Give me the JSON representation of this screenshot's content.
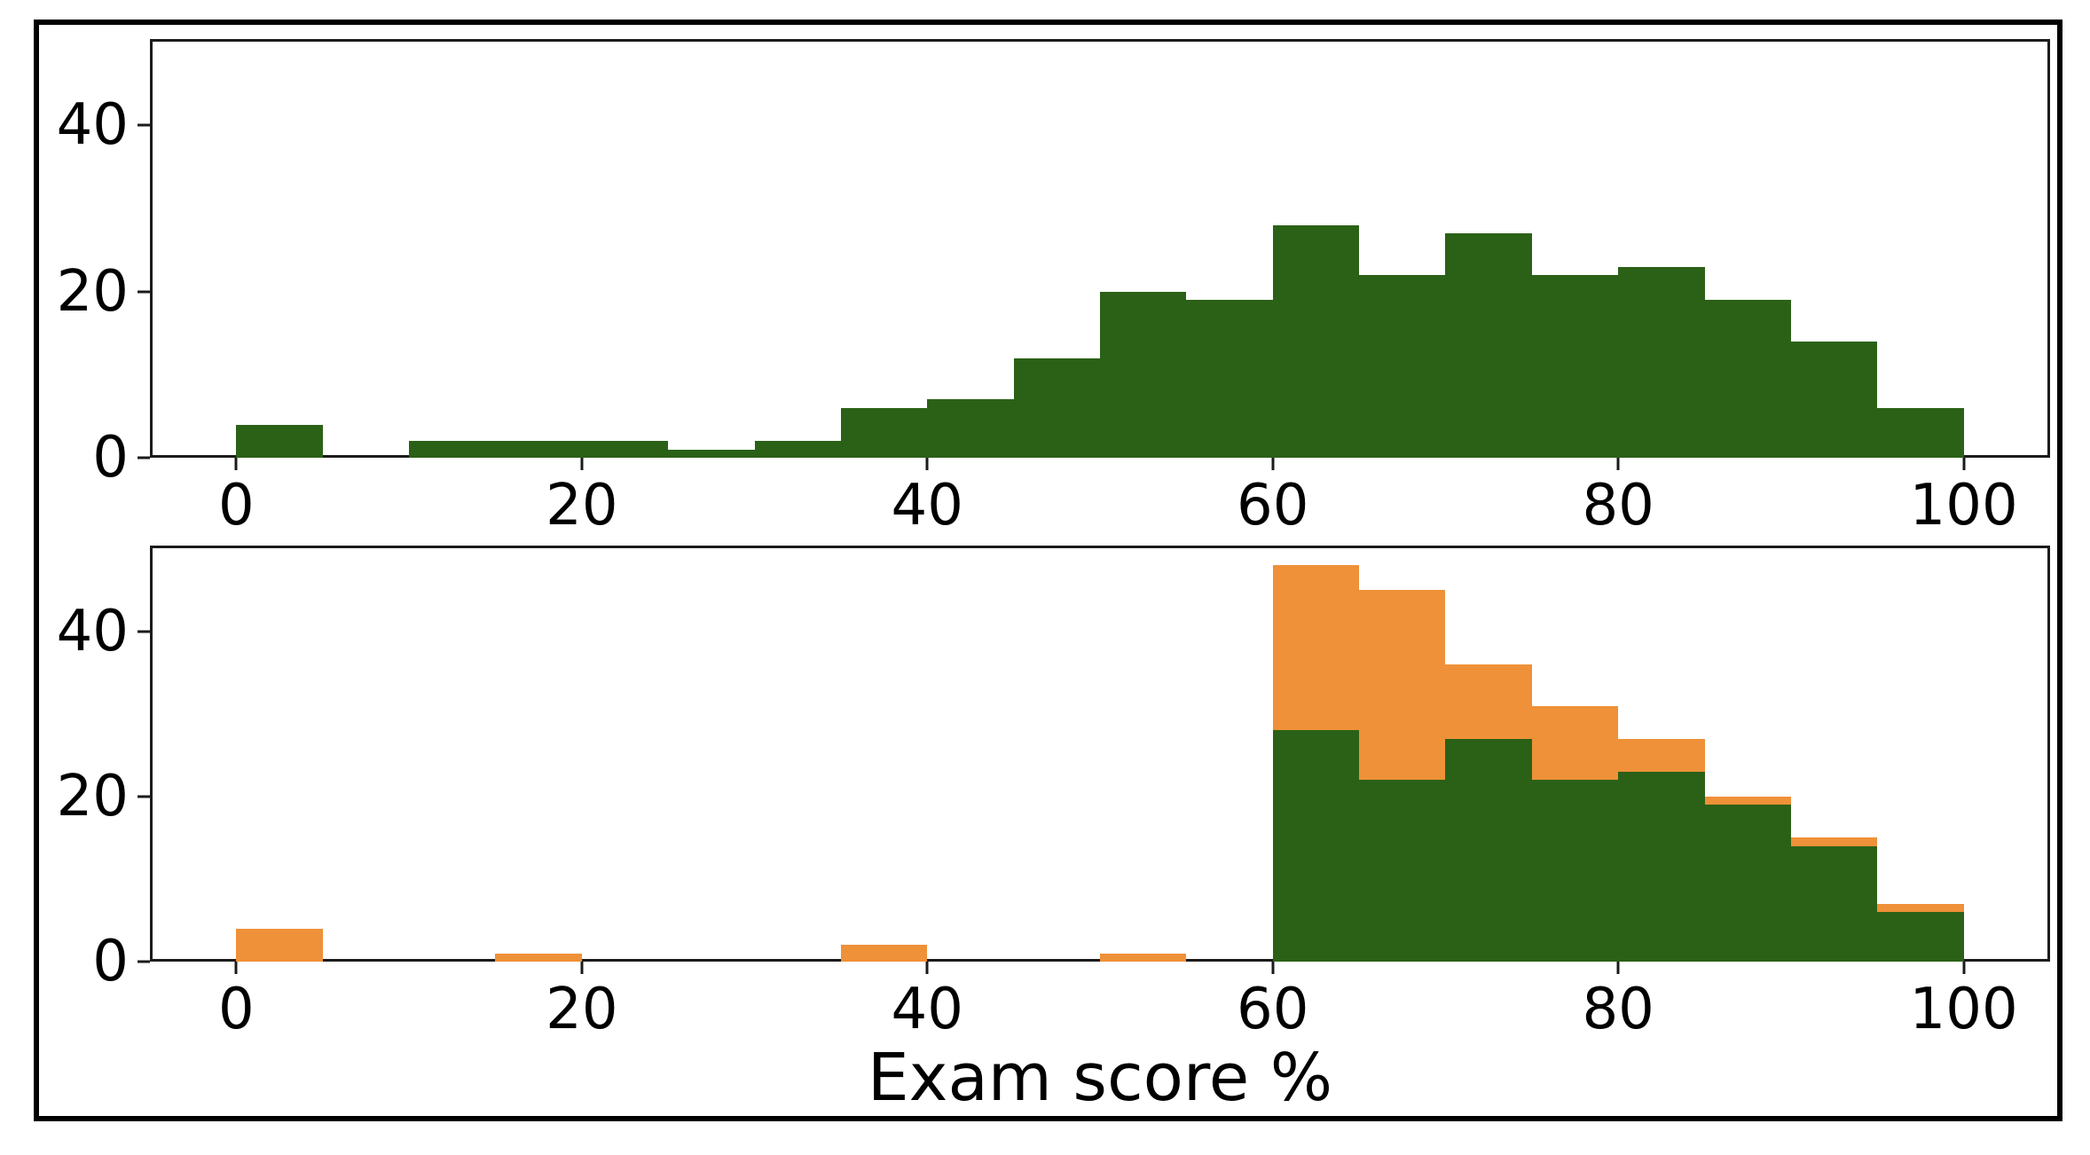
{
  "figure": {
    "background": "#ffffff",
    "frame_color": "#000000",
    "spine_color": "#1b1b1b",
    "text_color": "#000000"
  },
  "colors": {
    "green": "#2b6117",
    "orange": "#ef9138"
  },
  "xlabel": "Exam score %",
  "chart_data": [
    {
      "type": "bar",
      "subtype": "histogram",
      "panel": "top",
      "bin_start": 0,
      "bin_width": 5,
      "bin_edges": [
        0,
        5,
        10,
        15,
        20,
        25,
        30,
        35,
        40,
        45,
        50,
        55,
        60,
        65,
        70,
        75,
        80,
        85,
        90,
        95,
        100
      ],
      "xlim": [
        -5,
        105
      ],
      "ylim": [
        0,
        50.4
      ],
      "x_ticks": [
        "0",
        "20",
        "40",
        "60",
        "80",
        "100"
      ],
      "x_tick_values": [
        0,
        20,
        40,
        60,
        80,
        100
      ],
      "y_ticks": [
        "0",
        "20",
        "40"
      ],
      "y_tick_values": [
        0,
        20,
        40
      ],
      "title": "",
      "xlabel": "",
      "ylabel": "",
      "grid": false,
      "legend": false,
      "series": [
        {
          "name": "exam-scores-green",
          "color": "#2b6117",
          "values": [
            4,
            0,
            2,
            2,
            2,
            1,
            2,
            6,
            7,
            12,
            20,
            19,
            28,
            22,
            27,
            22,
            23,
            19,
            14,
            6
          ]
        }
      ]
    },
    {
      "type": "bar",
      "subtype": "histogram",
      "panel": "bottom",
      "bin_start": 0,
      "bin_width": 5,
      "bin_edges": [
        0,
        5,
        10,
        15,
        20,
        25,
        30,
        35,
        40,
        45,
        50,
        55,
        60,
        65,
        70,
        75,
        80,
        85,
        90,
        95,
        100
      ],
      "xlim": [
        -5,
        105
      ],
      "ylim": [
        0,
        50.4
      ],
      "x_ticks": [
        "0",
        "20",
        "40",
        "60",
        "80",
        "100"
      ],
      "x_tick_values": [
        0,
        20,
        40,
        60,
        80,
        100
      ],
      "y_ticks": [
        "0",
        "20",
        "40"
      ],
      "y_tick_values": [
        0,
        20,
        40
      ],
      "title": "",
      "xlabel": "Exam score %",
      "ylabel": "",
      "grid": false,
      "legend": false,
      "series": [
        {
          "name": "exam-scores-orange-behind",
          "color": "#ef9138",
          "values": [
            4,
            0,
            0,
            1,
            0,
            0,
            0,
            2,
            0,
            0,
            1,
            0,
            48,
            45,
            36,
            31,
            27,
            20,
            15,
            7
          ]
        },
        {
          "name": "exam-scores-green-front",
          "color": "#2b6117",
          "values": [
            0,
            0,
            0,
            0,
            0,
            0,
            0,
            0,
            0,
            0,
            0,
            0,
            28,
            22,
            27,
            22,
            23,
            19,
            14,
            6
          ]
        }
      ]
    }
  ]
}
